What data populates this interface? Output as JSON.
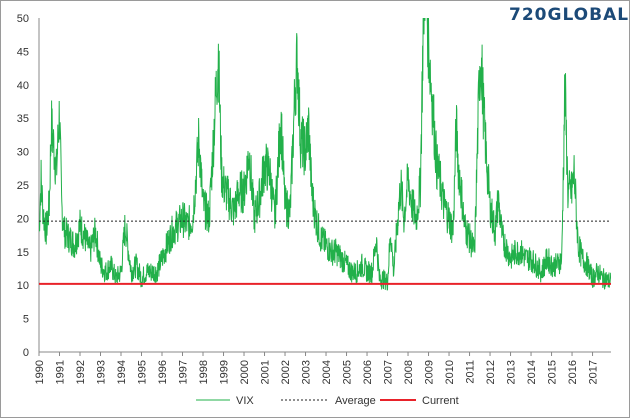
{
  "logo": {
    "text": "720GLOBAL"
  },
  "chart_data": {
    "type": "line",
    "title": "",
    "xlabel": "",
    "ylabel": "",
    "xlim": [
      1990,
      2017.9
    ],
    "ylim": [
      0,
      50
    ],
    "y_ticks": [
      "0",
      "5",
      "10",
      "15",
      "20",
      "25",
      "30",
      "35",
      "40",
      "45",
      "50"
    ],
    "x_ticks": [
      "1990",
      "1991",
      "1992",
      "1993",
      "1994",
      "1995",
      "1996",
      "1997",
      "1998",
      "1999",
      "2000",
      "2001",
      "2002",
      "2003",
      "2004",
      "2005",
      "2006",
      "2007",
      "2008",
      "2009",
      "2010",
      "2011",
      "2012",
      "2013",
      "2014",
      "2015",
      "2016",
      "2017"
    ],
    "grid": false,
    "legend_position": "bottom",
    "series": [
      {
        "name": "VIX",
        "color": "#22b04a",
        "style": "solid",
        "x": [
          1990.0,
          1990.1,
          1990.2,
          1990.35,
          1990.5,
          1990.6,
          1990.75,
          1990.85,
          1991.0,
          1991.1,
          1991.25,
          1991.5,
          1991.75,
          1992.0,
          1992.25,
          1992.5,
          1992.75,
          1993.0,
          1993.25,
          1993.5,
          1993.75,
          1994.0,
          1994.2,
          1994.5,
          1994.75,
          1995.0,
          1995.25,
          1995.5,
          1995.75,
          1996.0,
          1996.25,
          1996.5,
          1996.75,
          1997.0,
          1997.25,
          1997.5,
          1997.8,
          1998.0,
          1998.3,
          1998.6,
          1998.75,
          1998.9,
          1999.0,
          1999.25,
          1999.5,
          1999.75,
          2000.0,
          2000.25,
          2000.5,
          2000.75,
          2001.0,
          2001.25,
          2001.5,
          2001.7,
          2001.8,
          2002.0,
          2002.25,
          2002.5,
          2002.6,
          2002.75,
          2003.0,
          2003.15,
          2003.3,
          2003.5,
          2003.75,
          2004.0,
          2004.25,
          2004.5,
          2004.75,
          2005.0,
          2005.25,
          2005.5,
          2005.75,
          2006.0,
          2006.25,
          2006.45,
          2006.6,
          2006.75,
          2007.0,
          2007.15,
          2007.3,
          2007.55,
          2007.65,
          2007.8,
          2008.0,
          2008.2,
          2008.4,
          2008.6,
          2008.75,
          2008.85,
          2009.0,
          2009.2,
          2009.4,
          2009.6,
          2009.75,
          2010.0,
          2010.2,
          2010.35,
          2010.45,
          2010.6,
          2010.75,
          2011.0,
          2011.25,
          2011.5,
          2011.6,
          2011.7,
          2011.85,
          2012.0,
          2012.25,
          2012.4,
          2012.6,
          2012.75,
          2013.0,
          2013.25,
          2013.5,
          2013.75,
          2014.0,
          2014.25,
          2014.5,
          2014.8,
          2015.0,
          2015.25,
          2015.5,
          2015.65,
          2015.8,
          2016.0,
          2016.1,
          2016.3,
          2016.5,
          2016.75,
          2017.0,
          2017.25,
          2017.5,
          2017.65,
          2017.75,
          2017.9
        ],
        "values": [
          18,
          26,
          21,
          18,
          22,
          34,
          30,
          27,
          36,
          22,
          18,
          17,
          16,
          19,
          17,
          15,
          18,
          13,
          12,
          13,
          11,
          12,
          19,
          12,
          13,
          11,
          12,
          12,
          12,
          14,
          16,
          18,
          19,
          20,
          19,
          20,
          32,
          22,
          20,
          37,
          45,
          27,
          25,
          23,
          21,
          24,
          24,
          30,
          20,
          23,
          28,
          27,
          20,
          30,
          35,
          22,
          21,
          40,
          44,
          32,
          30,
          34,
          24,
          20,
          17,
          16,
          15,
          15,
          14,
          13,
          12,
          12,
          13,
          12,
          12,
          17,
          11,
          11,
          10.5,
          18,
          12,
          22,
          25,
          20,
          26,
          22,
          20,
          25,
          50,
          58,
          46,
          37,
          28,
          25,
          22,
          20,
          18,
          34,
          28,
          24,
          19,
          17,
          15,
          44,
          42,
          35,
          28,
          22,
          18,
          23,
          17,
          16,
          14,
          15,
          15,
          14,
          14,
          13,
          12,
          14,
          13,
          13,
          14,
          40,
          24,
          24,
          27,
          16,
          14,
          13,
          11,
          12,
          11,
          11,
          10.5,
          11
        ],
        "clip_to_max": 50
      },
      {
        "name": "Average",
        "color": "#222222",
        "style": "dashed",
        "value": 19.6
      },
      {
        "name": "Current",
        "color": "#e8222a",
        "style": "solid",
        "value": 10.2
      }
    ]
  }
}
